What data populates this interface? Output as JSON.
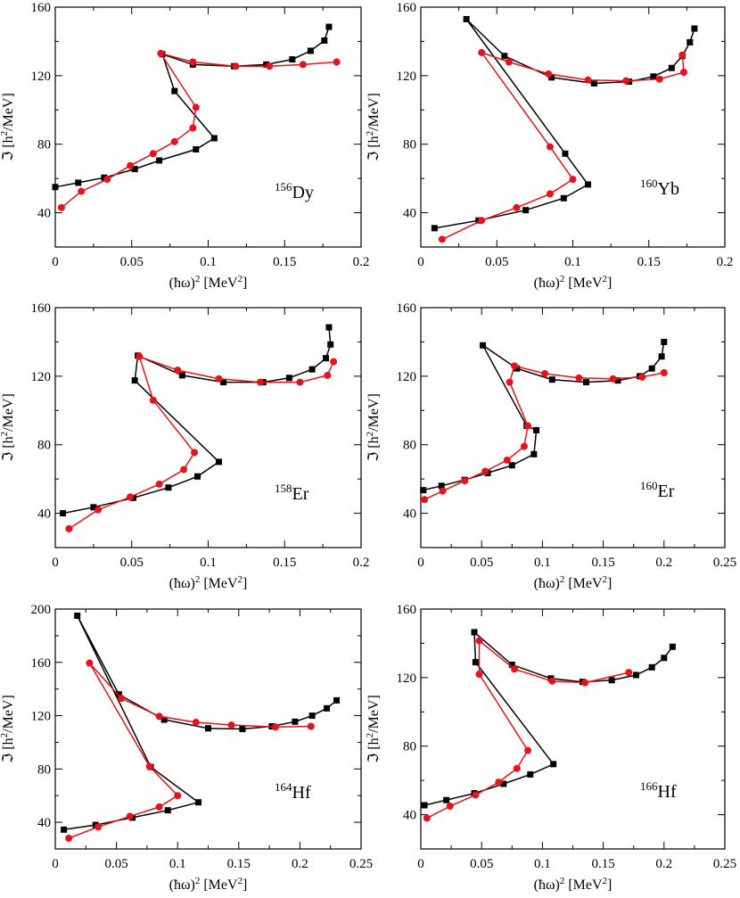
{
  "colors": {
    "black_series": "#000000",
    "red_series": "#e8121a",
    "frame": "#000000"
  },
  "chart_data": [
    {
      "type": "line",
      "nucleus": {
        "mass": "156",
        "symbol": "Dy"
      },
      "xlabel_main": "(ħω)",
      "xlabel_sup": "2",
      "xlabel_unit": " [MeV",
      "xlabel_unit_sup": "2",
      "xlabel_close": "]",
      "ylabel_main": "ℑ [h",
      "ylabel_sup": "2",
      "ylabel_rest": "/MeV]",
      "xlim": [
        0,
        0.2
      ],
      "ylim": [
        20,
        160
      ],
      "xticks": [
        "0",
        "0.05",
        "0.1",
        "0.15",
        "0.2"
      ],
      "yticks": [
        "40",
        "80",
        "120",
        "160"
      ],
      "series": [
        {
          "name": "black",
          "marker": "square",
          "x": [
            0.0,
            0.015,
            0.032,
            0.052,
            0.068,
            0.092,
            0.104,
            0.078,
            0.07,
            0.09,
            0.117,
            0.138,
            0.155,
            0.167,
            0.176,
            0.179
          ],
          "y": [
            55,
            57.5,
            60.5,
            65.5,
            70.5,
            77,
            83.5,
            111,
            132.5,
            126.5,
            125.5,
            126.5,
            129.5,
            134.5,
            140.5,
            148.5
          ]
        },
        {
          "name": "red",
          "marker": "circle",
          "x": [
            0.004,
            0.017,
            0.034,
            0.049,
            0.064,
            0.078,
            0.09,
            0.092,
            0.069,
            0.09,
            0.118,
            0.14,
            0.162,
            0.184
          ],
          "y": [
            43,
            52.5,
            59.5,
            67.5,
            74.5,
            81.5,
            89.5,
            101.5,
            133,
            128,
            125.5,
            125.5,
            126.5,
            128
          ]
        }
      ]
    },
    {
      "type": "line",
      "nucleus": {
        "mass": "160",
        "symbol": "Yb"
      },
      "xlabel_main": "(ħω)",
      "xlabel_sup": "2",
      "xlabel_unit": " [MeV",
      "xlabel_unit_sup": "2",
      "xlabel_close": "]",
      "ylabel_main": "ℑ [h",
      "ylabel_sup": "2",
      "ylabel_rest": "/MeV]",
      "xlim": [
        0,
        0.2
      ],
      "ylim": [
        20,
        160
      ],
      "xticks": [
        "0",
        "0.05",
        "0.1",
        "0.15",
        "0.2"
      ],
      "yticks": [
        "40",
        "80",
        "120",
        "160"
      ],
      "series": [
        {
          "name": "black",
          "marker": "square",
          "x": [
            0.009,
            0.038,
            0.069,
            0.094,
            0.11,
            0.095,
            0.03,
            0.055,
            0.086,
            0.114,
            0.137,
            0.153,
            0.165,
            0.172,
            0.177,
            0.18
          ],
          "y": [
            31,
            35.5,
            41.5,
            48.5,
            56.5,
            74.5,
            153,
            131.5,
            119,
            115.5,
            116.5,
            119.5,
            124.5,
            131.5,
            139.5,
            147.5
          ]
        },
        {
          "name": "red",
          "marker": "circle",
          "x": [
            0.014,
            0.04,
            0.063,
            0.085,
            0.1,
            0.085,
            0.04,
            0.058,
            0.084,
            0.11,
            0.135,
            0.157,
            0.173,
            0.172
          ],
          "y": [
            24.5,
            35.5,
            43,
            51,
            59.5,
            78.5,
            133.5,
            128,
            121,
            117.5,
            117,
            118,
            122,
            132
          ]
        }
      ]
    },
    {
      "type": "line",
      "nucleus": {
        "mass": "158",
        "symbol": "Er"
      },
      "xlabel_main": "(ħω)",
      "xlabel_sup": "2",
      "xlabel_unit": " [MeV",
      "xlabel_unit_sup": "2",
      "xlabel_close": "]",
      "ylabel_main": "ℑ [h",
      "ylabel_sup": "2",
      "ylabel_rest": "/MeV]",
      "xlim": [
        0,
        0.2
      ],
      "ylim": [
        20,
        160
      ],
      "xticks": [
        "0",
        "0.05",
        "0.1",
        "0.15",
        "0.2"
      ],
      "yticks": [
        "40",
        "80",
        "120",
        "160"
      ],
      "series": [
        {
          "name": "black",
          "marker": "square",
          "x": [
            0.005,
            0.025,
            0.051,
            0.074,
            0.093,
            0.107,
            0.052,
            0.054,
            0.083,
            0.11,
            0.136,
            0.153,
            0.168,
            0.177,
            0.18,
            0.179
          ],
          "y": [
            40,
            43.5,
            49,
            55,
            61.5,
            70,
            117.5,
            132,
            120.5,
            116.5,
            116.5,
            119,
            124,
            130.5,
            138.5,
            148.5
          ]
        },
        {
          "name": "red",
          "marker": "circle",
          "x": [
            0.009,
            0.028,
            0.049,
            0.068,
            0.084,
            0.091,
            0.064,
            0.055,
            0.08,
            0.107,
            0.134,
            0.16,
            0.178,
            0.182
          ],
          "y": [
            31,
            42,
            49.5,
            57,
            65.5,
            75.5,
            106,
            131.5,
            123.5,
            118.5,
            116.5,
            116.5,
            120.5,
            128.5
          ]
        }
      ]
    },
    {
      "type": "line",
      "nucleus": {
        "mass": "160",
        "symbol": "Er"
      },
      "xlabel_main": "(ħω)",
      "xlabel_sup": "2",
      "xlabel_unit": " [MeV",
      "xlabel_unit_sup": "2",
      "xlabel_close": "]",
      "ylabel_main": "ℑ [h",
      "ylabel_sup": "2",
      "ylabel_rest": "/MeV]",
      "xlim": [
        0,
        0.25
      ],
      "ylim": [
        20,
        160
      ],
      "xticks": [
        "0",
        "0.05",
        "0.1",
        "0.15",
        "0.2",
        "0.25"
      ],
      "yticks": [
        "40",
        "80",
        "120",
        "160"
      ],
      "series": [
        {
          "name": "black",
          "marker": "square",
          "x": [
            0.002,
            0.017,
            0.036,
            0.055,
            0.075,
            0.093,
            0.095,
            0.087,
            0.051,
            0.079,
            0.108,
            0.136,
            0.162,
            0.18,
            0.19,
            0.198,
            0.2
          ],
          "y": [
            53.5,
            56,
            59.5,
            63.5,
            68,
            74.5,
            88.5,
            91,
            138,
            124.5,
            118,
            116.5,
            117.5,
            120,
            124.5,
            131.5,
            140
          ]
        },
        {
          "name": "red",
          "marker": "circle",
          "x": [
            0.003,
            0.018,
            0.036,
            0.053,
            0.071,
            0.085,
            0.088,
            0.073,
            0.077,
            0.102,
            0.13,
            0.158,
            0.182,
            0.2
          ],
          "y": [
            48,
            53,
            59,
            64.5,
            71,
            79,
            91,
            116.5,
            126,
            121.5,
            119,
            118.5,
            119.5,
            122
          ]
        }
      ]
    },
    {
      "type": "line",
      "nucleus": {
        "mass": "164",
        "symbol": "Hf"
      },
      "xlabel_main": "(ħω)",
      "xlabel_sup": "2",
      "xlabel_unit": " [MeV",
      "xlabel_unit_sup": "2",
      "xlabel_close": "]",
      "ylabel_main": "ℑ [h",
      "ylabel_sup": "2",
      "ylabel_rest": "/MeV]",
      "xlim": [
        0,
        0.25
      ],
      "ylim": [
        20,
        200
      ],
      "xticks": [
        "0",
        "0.05",
        "0.1",
        "0.15",
        "0.2",
        "0.25"
      ],
      "yticks": [
        "40",
        "80",
        "120",
        "160",
        "200"
      ],
      "series": [
        {
          "name": "black",
          "marker": "square",
          "x": [
            0.007,
            0.033,
            0.063,
            0.092,
            0.117,
            0.078,
            0.018,
            0.052,
            0.089,
            0.125,
            0.153,
            0.177,
            0.196,
            0.21,
            0.222,
            0.23
          ],
          "y": [
            34.5,
            38,
            43.5,
            49,
            55,
            81.5,
            195,
            136,
            117,
            110.5,
            110,
            112,
            115.5,
            120,
            125.5,
            131.5
          ]
        },
        {
          "name": "red",
          "marker": "circle",
          "x": [
            0.011,
            0.035,
            0.061,
            0.085,
            0.1,
            0.077,
            0.028,
            0.054,
            0.085,
            0.115,
            0.144,
            0.18,
            0.209
          ],
          "y": [
            28,
            36.5,
            44.5,
            51.5,
            60,
            82,
            159.5,
            133,
            119.5,
            115,
            113,
            111.5,
            112
          ]
        }
      ]
    },
    {
      "type": "line",
      "nucleus": {
        "mass": "166",
        "symbol": "Hf"
      },
      "xlabel_main": "(ħω)",
      "xlabel_sup": "2",
      "xlabel_unit": " [MeV",
      "xlabel_unit_sup": "2",
      "xlabel_close": "]",
      "ylabel_main": "ℑ [h",
      "ylabel_sup": "2",
      "ylabel_rest": "/MeV]",
      "xlim": [
        0,
        0.25
      ],
      "ylim": [
        20,
        160
      ],
      "xticks": [
        "0",
        "0.05",
        "0.1",
        "0.15",
        "0.2",
        "0.25"
      ],
      "yticks": [
        "40",
        "80",
        "120",
        "160"
      ],
      "series": [
        {
          "name": "black",
          "marker": "square",
          "x": [
            0.003,
            0.021,
            0.044,
            0.068,
            0.09,
            0.109,
            0.045,
            0.044,
            0.075,
            0.107,
            0.133,
            0.157,
            0.177,
            0.19,
            0.2,
            0.207
          ],
          "y": [
            45.5,
            48.5,
            52.5,
            58,
            63.5,
            69.5,
            129,
            146.5,
            127.5,
            119.5,
            117.5,
            118.5,
            121.5,
            126,
            131.5,
            138
          ]
        },
        {
          "name": "red",
          "marker": "circle",
          "x": [
            0.005,
            0.024,
            0.045,
            0.064,
            0.079,
            0.088,
            0.048,
            0.048,
            0.077,
            0.108,
            0.135,
            0.171
          ],
          "y": [
            38,
            45,
            51.5,
            59,
            67,
            77.5,
            122,
            141.5,
            125,
            118,
            117,
            123
          ]
        }
      ]
    }
  ]
}
